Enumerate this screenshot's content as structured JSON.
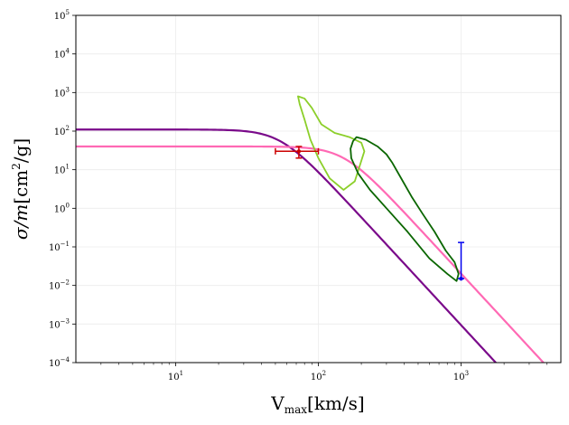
{
  "chart_data": {
    "type": "line",
    "xscale": "log",
    "yscale": "log",
    "xlim": [
      2,
      5000
    ],
    "ylim": [
      0.0001,
      100000
    ],
    "xlabel": {
      "main": "V",
      "sub": "max",
      "unit": "[km/s]"
    },
    "ylabel": {
      "main": "σ/m",
      "unit_pre": "[cm",
      "unit_sup": "2",
      "unit_post": "/g]"
    },
    "x_ticks": [
      {
        "value": 10,
        "base": "10",
        "exp": "1"
      },
      {
        "value": 100,
        "base": "10",
        "exp": "2"
      },
      {
        "value": 1000,
        "base": "10",
        "exp": "3"
      }
    ],
    "y_ticks": [
      {
        "value": 0.0001,
        "base": "10",
        "exp": "−4"
      },
      {
        "value": 0.001,
        "base": "10",
        "exp": "−3"
      },
      {
        "value": 0.01,
        "base": "10",
        "exp": "−2"
      },
      {
        "value": 0.1,
        "base": "10",
        "exp": "−1"
      },
      {
        "value": 1,
        "base": "10",
        "exp": "0"
      },
      {
        "value": 10,
        "base": "10",
        "exp": "1"
      },
      {
        "value": 100,
        "base": "10",
        "exp": "2"
      },
      {
        "value": 1000,
        "base": "10",
        "exp": "3"
      },
      {
        "value": 10000,
        "base": "10",
        "exp": "4"
      },
      {
        "value": 100000,
        "base": "10",
        "exp": "5"
      }
    ],
    "grid": true,
    "curves": [
      {
        "name": "purple-model-curve",
        "color": "#7a0a8a",
        "sigma0": 110,
        "w": 54,
        "n": 4
      },
      {
        "name": "pink-model-curve",
        "color": "#ff69b4",
        "sigma0": 40,
        "w": 150,
        "n": 4
      }
    ],
    "contours": [
      {
        "name": "lightgreen-contour",
        "color": "#8ccf2a",
        "points": [
          [
            72,
            800
          ],
          [
            80,
            700
          ],
          [
            90,
            400
          ],
          [
            105,
            150
          ],
          [
            130,
            90
          ],
          [
            165,
            70
          ],
          [
            200,
            50
          ],
          [
            210,
            30
          ],
          [
            180,
            5
          ],
          [
            150,
            3
          ],
          [
            120,
            6
          ],
          [
            100,
            20
          ],
          [
            88,
            60
          ],
          [
            80,
            200
          ],
          [
            74,
            500
          ],
          [
            72,
            800
          ]
        ]
      },
      {
        "name": "darkgreen-contour",
        "color": "#0a6600",
        "points": [
          [
            185,
            70
          ],
          [
            215,
            60
          ],
          [
            260,
            40
          ],
          [
            300,
            25
          ],
          [
            330,
            15
          ],
          [
            380,
            6
          ],
          [
            450,
            2
          ],
          [
            540,
            0.7
          ],
          [
            650,
            0.25
          ],
          [
            780,
            0.08
          ],
          [
            900,
            0.04
          ],
          [
            960,
            0.02
          ],
          [
            930,
            0.013
          ],
          [
            800,
            0.02
          ],
          [
            600,
            0.05
          ],
          [
            420,
            0.25
          ],
          [
            300,
            1
          ],
          [
            230,
            3
          ],
          [
            190,
            8
          ],
          [
            170,
            20
          ],
          [
            168,
            35
          ],
          [
            175,
            55
          ],
          [
            185,
            70
          ]
        ]
      }
    ],
    "errorbars": [
      {
        "name": "red-errorbar",
        "color": "#cc0000",
        "x": 73,
        "y": 30,
        "xerr": [
          50,
          100
        ],
        "yerr": [
          20,
          40
        ]
      },
      {
        "name": "blue-errorbar",
        "color": "#0000ee",
        "x": 1000,
        "y": 0.015,
        "xerr": null,
        "yerr": [
          0.015,
          0.13
        ]
      }
    ]
  }
}
